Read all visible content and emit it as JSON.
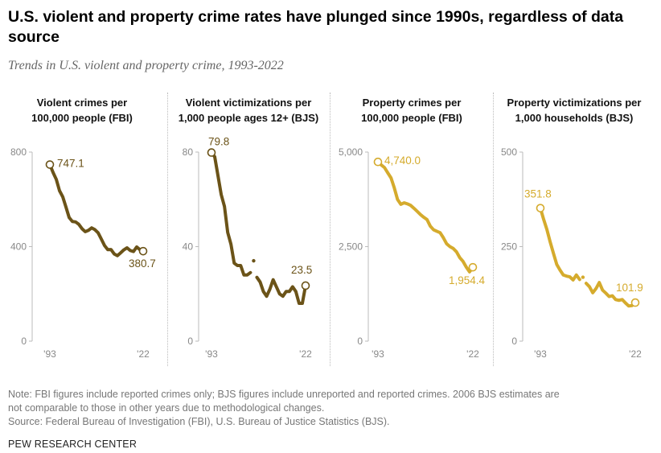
{
  "headline": "U.S. violent and property crime rates have plunged since 1990s, regardless of data source",
  "subtitle": "Trends in U.S. violent and property crime, 1993-2022",
  "colors": {
    "violent": "#6b5318",
    "property": "#d5ab2d",
    "axis": "#bbbbbb",
    "tick": "#888888"
  },
  "chart_data": [
    {
      "type": "line",
      "title": "Violent crimes per 100,000 people (FBI)",
      "title_lines": [
        "Violent crimes per",
        "100,000 people (FBI)"
      ],
      "color": "violent",
      "ylim": [
        0,
        800
      ],
      "yticks": [
        0,
        400,
        800
      ],
      "ytick_labels": [
        "0",
        "400",
        "800"
      ],
      "x": [
        1993,
        1994,
        1995,
        1996,
        1997,
        1998,
        1999,
        2000,
        2001,
        2002,
        2003,
        2004,
        2005,
        2006,
        2007,
        2008,
        2009,
        2010,
        2011,
        2012,
        2013,
        2014,
        2015,
        2016,
        2017,
        2018,
        2019,
        2020,
        2021,
        2022
      ],
      "values": [
        747.1,
        713.6,
        684.5,
        636.6,
        611.0,
        567.6,
        523.0,
        506.5,
        504.5,
        494.4,
        475.8,
        463.2,
        469.0,
        479.3,
        471.8,
        458.6,
        431.9,
        404.5,
        387.1,
        387.8,
        369.1,
        361.6,
        373.7,
        386.3,
        394.9,
        383.4,
        379.4,
        398.5,
        387.0,
        380.7
      ],
      "xtick_labels": [
        "'93",
        "'22"
      ],
      "start_label": "747.1",
      "end_label": "380.7"
    },
    {
      "type": "line",
      "title": "Violent victimizations per 1,000 people ages 12+ (BJS)",
      "title_lines": [
        "Violent victimizations per",
        "1,000 people ages 12+ (BJS)"
      ],
      "color": "violent",
      "ylim": [
        0,
        80
      ],
      "yticks": [
        0,
        40,
        80
      ],
      "ytick_labels": [
        "0",
        "40",
        "80"
      ],
      "x": [
        1993,
        1994,
        1995,
        1996,
        1997,
        1998,
        1999,
        2000,
        2001,
        2002,
        2003,
        2004,
        2005,
        2007,
        2008,
        2009,
        2010,
        2011,
        2012,
        2013,
        2014,
        2015,
        2016,
        2017,
        2018,
        2019,
        2020,
        2021,
        2022
      ],
      "values": [
        79.8,
        78.0,
        70.0,
        62.0,
        57.0,
        46.0,
        41.0,
        33.0,
        32.0,
        32.0,
        28.0,
        28.0,
        29.0,
        27.0,
        25.0,
        21.0,
        19.0,
        22.0,
        26.0,
        23.0,
        20.0,
        19.0,
        21.0,
        21.0,
        23.0,
        21.0,
        16.0,
        16.0,
        23.5
      ],
      "gap_after_year": 2005,
      "isolated_x": 2006,
      "isolated_value": 34.0,
      "xtick_labels": [
        "'93",
        "'22"
      ],
      "start_label": "79.8",
      "end_label": "23.5"
    },
    {
      "type": "line",
      "title": "Property crimes per 100,000 people (FBI)",
      "title_lines": [
        "Property crimes per",
        "100,000 people (FBI)"
      ],
      "color": "property",
      "ylim": [
        0,
        5000
      ],
      "yticks": [
        0,
        2500,
        5000
      ],
      "ytick_labels": [
        "0",
        "2,500",
        "5,000"
      ],
      "x": [
        1993,
        1994,
        1995,
        1996,
        1997,
        1998,
        1999,
        2000,
        2001,
        2002,
        2003,
        2004,
        2005,
        2006,
        2007,
        2008,
        2009,
        2010,
        2011,
        2012,
        2013,
        2014,
        2015,
        2016,
        2017,
        2018,
        2019,
        2020,
        2021,
        2022
      ],
      "values": [
        4740.0,
        4660.2,
        4590.5,
        4451.0,
        4316.3,
        4052.5,
        3743.6,
        3618.3,
        3658.1,
        3630.6,
        3591.2,
        3514.1,
        3431.5,
        3346.6,
        3276.4,
        3214.6,
        3041.3,
        2945.9,
        2905.4,
        2868.0,
        2733.6,
        2574.1,
        2500.5,
        2451.6,
        2362.9,
        2209.8,
        2109.9,
        1958.2,
        1832.3,
        1954.4
      ],
      "xtick_labels": [
        "'93",
        "'22"
      ],
      "start_label": "4,740.0",
      "end_label": "1,954.4"
    },
    {
      "type": "line",
      "title": "Property victimizations per 1,000 households (BJS)",
      "title_lines": [
        "Property victimizations per",
        "1,000 households (BJS)"
      ],
      "color": "property",
      "ylim": [
        0,
        500
      ],
      "yticks": [
        0,
        250,
        500
      ],
      "ytick_labels": [
        "0",
        "250",
        "500"
      ],
      "x": [
        1993,
        1994,
        1995,
        1996,
        1997,
        1998,
        1999,
        2000,
        2001,
        2002,
        2003,
        2004,
        2005,
        2007,
        2008,
        2009,
        2010,
        2011,
        2012,
        2013,
        2014,
        2015,
        2016,
        2017,
        2018,
        2019,
        2020,
        2021,
        2022
      ],
      "values": [
        351.8,
        322.0,
        295.0,
        262.0,
        232.0,
        203.0,
        188.0,
        175.0,
        172.0,
        170.0,
        162.0,
        175.0,
        163.0,
        153.0,
        144.0,
        128.0,
        139.0,
        155.0,
        135.0,
        127.0,
        118.0,
        120.0,
        110.0,
        108.0,
        110.0,
        101.0,
        93.0,
        94.0,
        101.9
      ],
      "gap_after_year": 2005,
      "isolated_x": 2006,
      "isolated_value": 169.0,
      "xtick_labels": [
        "'93",
        "'22"
      ],
      "start_label": "351.8",
      "end_label": "101.9"
    }
  ],
  "footer": {
    "note_line1": "Note: FBI figures include reported crimes only; BJS figures include unreported and reported crimes. 2006 BJS estimates are",
    "note_line2": "not comparable to those in other years due to methodological changes.",
    "source": "Source: Federal Bureau of Investigation (FBI), U.S. Bureau of Justice Statistics (BJS)."
  },
  "brand": "PEW RESEARCH CENTER"
}
